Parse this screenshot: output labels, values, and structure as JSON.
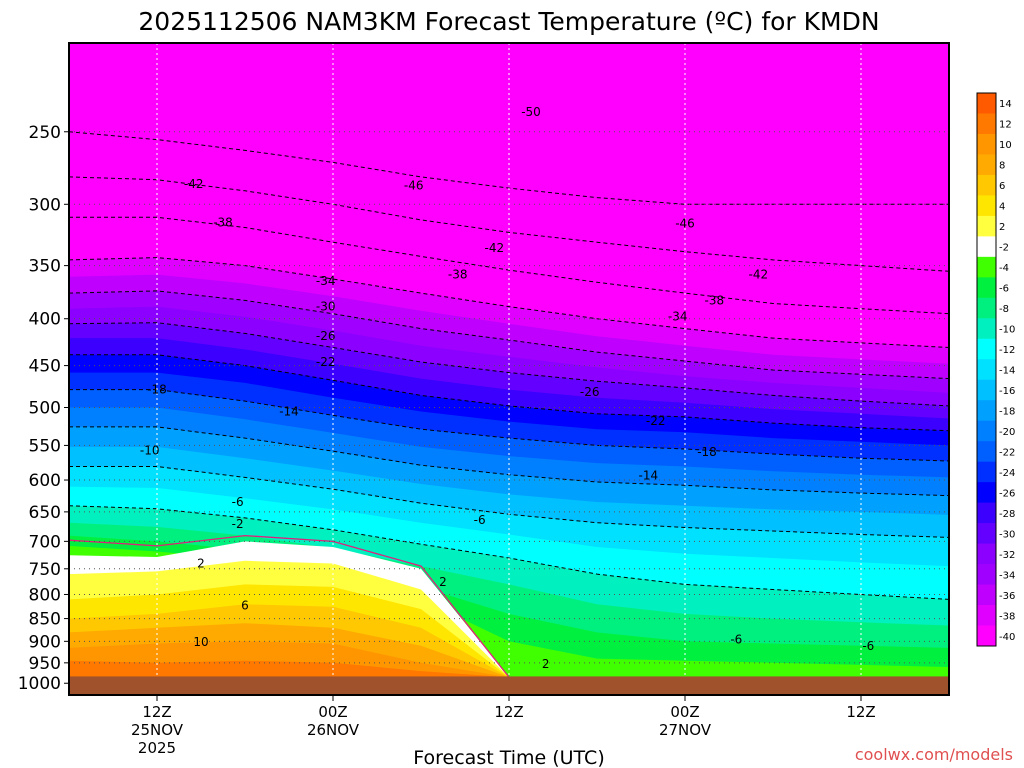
{
  "chart_data": {
    "type": "heatmap",
    "title": "2025112506 NAM3KM Forecast Temperature (ºC) for KMDN",
    "xlabel": "Forecast Time (UTC)",
    "ylabel": "",
    "credit": "coolwx.com/models",
    "x_ticks": [
      {
        "hour": 12,
        "lines": [
          "12Z",
          "25NOV",
          "2025"
        ]
      },
      {
        "hour": 24,
        "lines": [
          "00Z",
          "26NOV"
        ]
      },
      {
        "hour": 36,
        "lines": [
          "12Z"
        ]
      },
      {
        "hour": 48,
        "lines": [
          "00Z",
          "27NOV"
        ]
      },
      {
        "hour": 60,
        "lines": [
          "12Z"
        ]
      }
    ],
    "xlim": [
      6,
      66
    ],
    "y_ticks": [
      250,
      300,
      350,
      400,
      450,
      500,
      550,
      600,
      650,
      700,
      750,
      800,
      850,
      900,
      950,
      1000
    ],
    "y_tick_labels": [
      "250",
      "300",
      "350",
      "400",
      "450",
      "500",
      "550",
      "600",
      "650",
      "700",
      "750",
      "800",
      "850",
      "900",
      "950",
      "1000"
    ],
    "ylim": [
      1030,
      200
    ],
    "y_scale": "log-pressure (inverted)",
    "ground_pressure": 983,
    "ground_color": "#a0522d",
    "colorbar": {
      "levels": [
        "14",
        "12",
        "10",
        "8",
        "6",
        "4",
        "2",
        "-2",
        "-4",
        "-6",
        "-8",
        "-10",
        "-12",
        "-14",
        "-16",
        "-18",
        "-20",
        "-22",
        "-24",
        "-26",
        "-28",
        "-30",
        "-32",
        "-34",
        "-36",
        "-38",
        "-40"
      ],
      "colors": [
        "#ff5a00",
        "#ff7800",
        "#ff9600",
        "#ffaa00",
        "#ffc800",
        "#ffe600",
        "#ffff40",
        "#ffffff",
        "#40ff00",
        "#00f040",
        "#00f080",
        "#00f0c0",
        "#00ffff",
        "#00e0ff",
        "#00c0ff",
        "#00a0ff",
        "#0080ff",
        "#0060ff",
        "#0030ff",
        "#0000ff",
        "#3c00ff",
        "#6400ff",
        "#8c00ff",
        "#a000ff",
        "#c000ff",
        "#e000ff",
        "#ff00ff"
      ]
    },
    "contour_labels": [
      {
        "text": "-50",
        "hour": 37.5,
        "p": 238
      },
      {
        "text": "-42",
        "hour": 14.5,
        "p": 285
      },
      {
        "text": "-46",
        "hour": 29.5,
        "p": 286
      },
      {
        "text": "-38",
        "hour": 16.5,
        "p": 314
      },
      {
        "text": "-46",
        "hour": 48.0,
        "p": 315
      },
      {
        "text": "-42",
        "hour": 35.0,
        "p": 335
      },
      {
        "text": "-38",
        "hour": 32.5,
        "p": 358
      },
      {
        "text": "-42",
        "hour": 53.0,
        "p": 358
      },
      {
        "text": "-34",
        "hour": 23.5,
        "p": 364
      },
      {
        "text": "-38",
        "hour": 50.0,
        "p": 382
      },
      {
        "text": "-30",
        "hour": 23.5,
        "p": 388
      },
      {
        "text": "-34",
        "hour": 47.5,
        "p": 398
      },
      {
        "text": "-26",
        "hour": 23.5,
        "p": 418
      },
      {
        "text": "-22",
        "hour": 23.5,
        "p": 446
      },
      {
        "text": "-18",
        "hour": 12.0,
        "p": 478
      },
      {
        "text": "-26",
        "hour": 41.5,
        "p": 481
      },
      {
        "text": "-14",
        "hour": 21.0,
        "p": 505
      },
      {
        "text": "-22",
        "hour": 46.0,
        "p": 517
      },
      {
        "text": "-10",
        "hour": 11.5,
        "p": 557
      },
      {
        "text": "-18",
        "hour": 49.5,
        "p": 559
      },
      {
        "text": "-14",
        "hour": 45.5,
        "p": 593
      },
      {
        "text": "-6",
        "hour": 17.5,
        "p": 634
      },
      {
        "text": "-6",
        "hour": 34.0,
        "p": 663
      },
      {
        "text": "-2",
        "hour": 17.5,
        "p": 670
      },
      {
        "text": "2",
        "hour": 15.0,
        "p": 740
      },
      {
        "text": "2",
        "hour": 31.5,
        "p": 775
      },
      {
        "text": "6",
        "hour": 18.0,
        "p": 822
      },
      {
        "text": "10",
        "hour": 15.0,
        "p": 902
      },
      {
        "text": "-6",
        "hour": 51.5,
        "p": 896
      },
      {
        "text": "-6",
        "hour": 60.5,
        "p": 911
      },
      {
        "text": "2",
        "hour": 38.5,
        "p": 953
      }
    ]
  }
}
